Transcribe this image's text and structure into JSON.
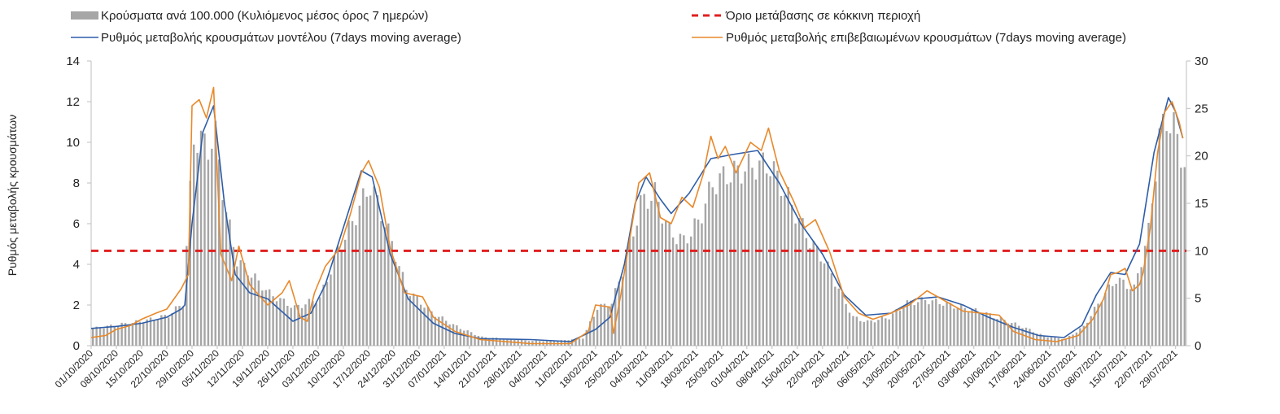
{
  "chart_data": {
    "type": "bar+line",
    "title": "",
    "ylabel_left": "Ρυθμός μεταβολής κρουσμάτων",
    "ylabel_right": "",
    "left_axis": {
      "min": 0,
      "max": 14,
      "ticks": [
        "0",
        "2",
        "4",
        "6",
        "8",
        "10",
        "12",
        "14"
      ]
    },
    "right_axis": {
      "min": 0,
      "max": 30,
      "ticks": [
        "0",
        "5",
        "10",
        "15",
        "20",
        "25",
        "30"
      ]
    },
    "x_start": "2020-10-01",
    "x_end": "2021-08-01",
    "x_tick_labels": [
      "01/10/2020",
      "08/10/2020",
      "15/10/2020",
      "22/10/2020",
      "29/10/2020",
      "05/11/2020",
      "12/11/2020",
      "19/11/2020",
      "26/11/2020",
      "03/12/2020",
      "10/12/2020",
      "17/12/2020",
      "24/12/2020",
      "31/12/2020",
      "07/01/2021",
      "14/01/2021",
      "21/01/2021",
      "28/01/2021",
      "04/02/2021",
      "11/02/2021",
      "18/02/2021",
      "25/02/2021",
      "04/03/2021",
      "11/03/2021",
      "18/03/2021",
      "25/03/2021",
      "01/04/2021",
      "08/04/2021",
      "15/04/2021",
      "22/04/2021",
      "29/04/2021",
      "06/05/2021",
      "13/05/2021",
      "20/05/2021",
      "27/05/2021",
      "03/06/2021",
      "10/06/2021",
      "17/06/2021",
      "24/06/2021",
      "01/07/2021",
      "08/07/2021",
      "15/07/2021",
      "22/07/2021",
      "29/07/2021"
    ],
    "legend": {
      "bars": "Κρούσματα ανά 100.000 (Κυλιόμενος μέσος όρος 7 ημερών)",
      "threshold": "Όριο μετάβασης σε κόκκινη περιοχή",
      "model": "Ρυθμός μεταβολής κρουσμάτων μοντέλου (7days moving average)",
      "confirmed": "Ρυθμός μεταβολής επιβεβαιωμένων κρουσμάτων (7days moving average)"
    },
    "legend_placement": "top",
    "grid": false,
    "threshold_value_right": 10,
    "series": [
      {
        "name": "Κρούσματα ανά 100.000 (Κυλιόμενος μέσος όρος 7 ημερών)",
        "kind": "bar",
        "axis": "right",
        "color": "#a6a6a6",
        "points": [
          [
            "2020-10-01",
            1.8
          ],
          [
            "2020-10-08",
            2.2
          ],
          [
            "2020-10-15",
            2.6
          ],
          [
            "2020-10-22",
            3.2
          ],
          [
            "2020-10-26",
            4.5
          ],
          [
            "2020-10-29",
            22
          ],
          [
            "2020-11-02",
            21
          ],
          [
            "2020-11-04",
            22
          ],
          [
            "2020-11-07",
            14
          ],
          [
            "2020-11-10",
            9
          ],
          [
            "2020-11-14",
            7.5
          ],
          [
            "2020-11-19",
            5.5
          ],
          [
            "2020-11-26",
            4
          ],
          [
            "2020-12-03",
            5
          ],
          [
            "2020-12-08",
            10
          ],
          [
            "2020-12-12",
            13
          ],
          [
            "2020-12-17",
            17
          ],
          [
            "2020-12-22",
            12
          ],
          [
            "2020-12-27",
            6
          ],
          [
            "2021-01-03",
            3.5
          ],
          [
            "2021-01-10",
            2
          ],
          [
            "2021-01-17",
            0.9
          ],
          [
            "2021-01-24",
            0.7
          ],
          [
            "2021-01-31",
            0.5
          ],
          [
            "2021-02-07",
            0.5
          ],
          [
            "2021-02-14",
            0.8
          ],
          [
            "2021-02-18",
            4
          ],
          [
            "2021-02-22",
            4.5
          ],
          [
            "2021-02-26",
            9
          ],
          [
            "2021-03-02",
            15
          ],
          [
            "2021-03-06",
            16
          ],
          [
            "2021-03-10",
            12
          ],
          [
            "2021-03-14",
            11
          ],
          [
            "2021-03-18",
            13
          ],
          [
            "2021-03-22",
            17
          ],
          [
            "2021-03-26",
            18
          ],
          [
            "2021-03-30",
            18.5
          ],
          [
            "2021-04-03",
            19
          ],
          [
            "2021-04-07",
            19
          ],
          [
            "2021-04-10",
            17
          ],
          [
            "2021-04-14",
            14
          ],
          [
            "2021-04-18",
            11
          ],
          [
            "2021-04-22",
            9
          ],
          [
            "2021-04-26",
            6
          ],
          [
            "2021-04-30",
            3
          ],
          [
            "2021-05-04",
            2.5
          ],
          [
            "2021-05-10",
            3
          ],
          [
            "2021-05-15",
            4.5
          ],
          [
            "2021-05-20",
            4.8
          ],
          [
            "2021-05-25",
            4.5
          ],
          [
            "2021-05-30",
            4
          ],
          [
            "2021-06-05",
            3.5
          ],
          [
            "2021-06-10",
            2.8
          ],
          [
            "2021-06-16",
            2
          ],
          [
            "2021-06-22",
            1
          ],
          [
            "2021-06-28",
            0.7
          ],
          [
            "2021-07-03",
            2
          ],
          [
            "2021-07-08",
            5
          ],
          [
            "2021-07-12",
            7
          ],
          [
            "2021-07-17",
            6
          ],
          [
            "2021-07-21",
            12
          ],
          [
            "2021-07-24",
            22
          ],
          [
            "2021-07-26",
            24
          ],
          [
            "2021-07-28",
            23
          ],
          [
            "2021-07-31",
            19
          ]
        ]
      },
      {
        "name": "Ρυθμός μεταβολής κρουσμάτων μοντέλου (7days moving average)",
        "kind": "line",
        "axis": "left",
        "color": "#2e5da8",
        "points": [
          [
            "2020-10-01",
            0.85
          ],
          [
            "2020-10-08",
            0.95
          ],
          [
            "2020-10-15",
            1.1
          ],
          [
            "2020-10-22",
            1.4
          ],
          [
            "2020-10-26",
            1.8
          ],
          [
            "2020-10-27",
            2
          ],
          [
            "2020-10-29",
            6
          ],
          [
            "2020-11-01",
            10.5
          ],
          [
            "2020-11-04",
            11.8
          ],
          [
            "2020-11-07",
            7
          ],
          [
            "2020-11-10",
            3.5
          ],
          [
            "2020-11-14",
            2.6
          ],
          [
            "2020-11-19",
            2.3
          ],
          [
            "2020-11-26",
            1.2
          ],
          [
            "2020-12-01",
            1.6
          ],
          [
            "2020-12-05",
            3
          ],
          [
            "2020-12-10",
            5.8
          ],
          [
            "2020-12-15",
            8.6
          ],
          [
            "2020-12-18",
            8.3
          ],
          [
            "2020-12-23",
            4.5
          ],
          [
            "2020-12-28",
            2.3
          ],
          [
            "2021-01-04",
            1.1
          ],
          [
            "2021-01-10",
            0.6
          ],
          [
            "2021-01-17",
            0.35
          ],
          [
            "2021-01-31",
            0.3
          ],
          [
            "2021-02-11",
            0.2
          ],
          [
            "2021-02-18",
            0.8
          ],
          [
            "2021-02-22",
            1.4
          ],
          [
            "2021-02-26",
            4
          ],
          [
            "2021-03-01",
            7
          ],
          [
            "2021-03-04",
            8.3
          ],
          [
            "2021-03-08",
            7.2
          ],
          [
            "2021-03-11",
            6.5
          ],
          [
            "2021-03-16",
            7.5
          ],
          [
            "2021-03-22",
            9.2
          ],
          [
            "2021-03-28",
            9.4
          ],
          [
            "2021-04-04",
            9.6
          ],
          [
            "2021-04-10",
            8
          ],
          [
            "2021-04-16",
            6
          ],
          [
            "2021-04-22",
            4.5
          ],
          [
            "2021-04-28",
            2.5
          ],
          [
            "2021-05-04",
            1.5
          ],
          [
            "2021-05-11",
            1.6
          ],
          [
            "2021-05-18",
            2.3
          ],
          [
            "2021-05-24",
            2.4
          ],
          [
            "2021-05-31",
            2
          ],
          [
            "2021-06-07",
            1.4
          ],
          [
            "2021-06-14",
            0.9
          ],
          [
            "2021-06-21",
            0.5
          ],
          [
            "2021-06-28",
            0.4
          ],
          [
            "2021-07-03",
            1
          ],
          [
            "2021-07-07",
            2.5
          ],
          [
            "2021-07-11",
            3.6
          ],
          [
            "2021-07-15",
            3.5
          ],
          [
            "2021-07-19",
            5
          ],
          [
            "2021-07-23",
            9.5
          ],
          [
            "2021-07-27",
            12.2
          ],
          [
            "2021-07-29",
            11.5
          ],
          [
            "2021-07-31",
            10.2
          ]
        ]
      },
      {
        "name": "Ρυθμός μεταβολής επιβεβαιωμένων κρουσμάτων (7days moving average)",
        "kind": "line",
        "axis": "left",
        "color": "#e8892b",
        "points": [
          [
            "2020-10-01",
            0.4
          ],
          [
            "2020-10-05",
            0.5
          ],
          [
            "2020-10-08",
            0.8
          ],
          [
            "2020-10-12",
            1
          ],
          [
            "2020-10-15",
            1.3
          ],
          [
            "2020-10-19",
            1.6
          ],
          [
            "2020-10-22",
            1.8
          ],
          [
            "2020-10-26",
            2.8
          ],
          [
            "2020-10-28",
            3.5
          ],
          [
            "2020-10-29",
            11.8
          ],
          [
            "2020-10-31",
            12.1
          ],
          [
            "2020-11-02",
            11.2
          ],
          [
            "2020-11-04",
            12.7
          ],
          [
            "2020-11-06",
            4.5
          ],
          [
            "2020-11-09",
            3.2
          ],
          [
            "2020-11-11",
            4.9
          ],
          [
            "2020-11-14",
            3
          ],
          [
            "2020-11-19",
            2
          ],
          [
            "2020-11-23",
            2.6
          ],
          [
            "2020-11-25",
            3.2
          ],
          [
            "2020-11-28",
            1.4
          ],
          [
            "2020-11-30",
            1.2
          ],
          [
            "2020-12-02",
            2.6
          ],
          [
            "2020-12-05",
            3.9
          ],
          [
            "2020-12-09",
            4.8
          ],
          [
            "2020-12-12",
            6.5
          ],
          [
            "2020-12-15",
            8.5
          ],
          [
            "2020-12-17",
            9.1
          ],
          [
            "2020-12-20",
            7.8
          ],
          [
            "2020-12-23",
            4.8
          ],
          [
            "2020-12-27",
            2.6
          ],
          [
            "2021-01-01",
            2.4
          ],
          [
            "2021-01-04",
            1.4
          ],
          [
            "2021-01-10",
            0.7
          ],
          [
            "2021-01-17",
            0.3
          ],
          [
            "2021-01-31",
            0.1
          ],
          [
            "2021-02-11",
            0.1
          ],
          [
            "2021-02-16",
            0.7
          ],
          [
            "2021-02-18",
            2
          ],
          [
            "2021-02-22",
            1.9
          ],
          [
            "2021-02-23",
            0.6
          ],
          [
            "2021-02-25",
            2.5
          ],
          [
            "2021-02-28",
            5.8
          ],
          [
            "2021-03-02",
            8
          ],
          [
            "2021-03-05",
            8.5
          ],
          [
            "2021-03-08",
            6.3
          ],
          [
            "2021-03-11",
            6
          ],
          [
            "2021-03-14",
            7.3
          ],
          [
            "2021-03-17",
            6.8
          ],
          [
            "2021-03-20",
            8.5
          ],
          [
            "2021-03-22",
            10.3
          ],
          [
            "2021-03-24",
            9.2
          ],
          [
            "2021-03-26",
            9.8
          ],
          [
            "2021-03-29",
            8.5
          ],
          [
            "2021-04-02",
            10
          ],
          [
            "2021-04-05",
            9.6
          ],
          [
            "2021-04-07",
            10.7
          ],
          [
            "2021-04-10",
            8.6
          ],
          [
            "2021-04-14",
            7.1
          ],
          [
            "2021-04-17",
            5.8
          ],
          [
            "2021-04-20",
            6.2
          ],
          [
            "2021-04-24",
            4.6
          ],
          [
            "2021-04-28",
            2.4
          ],
          [
            "2021-05-02",
            1.6
          ],
          [
            "2021-05-06",
            1.3
          ],
          [
            "2021-05-11",
            1.6
          ],
          [
            "2021-05-16",
            2
          ],
          [
            "2021-05-21",
            2.7
          ],
          [
            "2021-05-26",
            2.2
          ],
          [
            "2021-05-31",
            1.7
          ],
          [
            "2021-06-05",
            1.6
          ],
          [
            "2021-06-10",
            1.5
          ],
          [
            "2021-06-14",
            0.7
          ],
          [
            "2021-06-20",
            0.3
          ],
          [
            "2021-06-26",
            0.2
          ],
          [
            "2021-07-02",
            0.5
          ],
          [
            "2021-07-06",
            1.3
          ],
          [
            "2021-07-09",
            2.3
          ],
          [
            "2021-07-11",
            3.5
          ],
          [
            "2021-07-13",
            3.6
          ],
          [
            "2021-07-15",
            3.8
          ],
          [
            "2021-07-17",
            2.7
          ],
          [
            "2021-07-19",
            3
          ],
          [
            "2021-07-20",
            3.6
          ],
          [
            "2021-07-22",
            5.8
          ],
          [
            "2021-07-24",
            9.5
          ],
          [
            "2021-07-26",
            11.5
          ],
          [
            "2021-07-28",
            12
          ],
          [
            "2021-07-30",
            11
          ],
          [
            "2021-07-31",
            10.2
          ]
        ]
      }
    ]
  }
}
